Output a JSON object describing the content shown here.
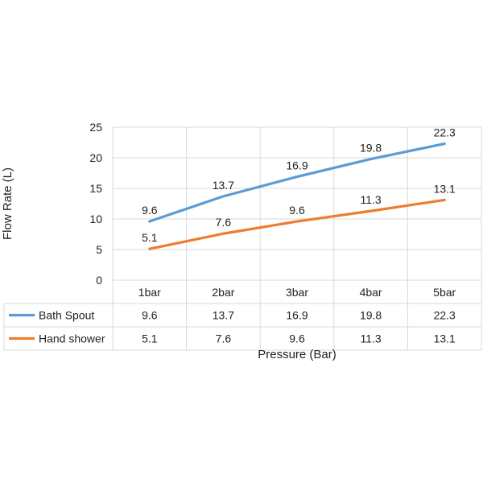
{
  "chart_data": {
    "type": "line",
    "title": "",
    "xlabel": "Pressure (Bar)",
    "ylabel": "Flow Rate (L)",
    "categories": [
      "1bar",
      "2bar",
      "3bar",
      "4bar",
      "5bar"
    ],
    "ylim": [
      0,
      25
    ],
    "yticks": [
      0,
      5,
      10,
      15,
      20,
      25
    ],
    "grid": true,
    "data_table": true,
    "series": [
      {
        "name": "Bath Spout",
        "color": "#5b9bd5",
        "values": [
          9.6,
          13.7,
          16.9,
          19.8,
          22.3
        ]
      },
      {
        "name": "Hand shower",
        "color": "#ed7d31",
        "values": [
          5.1,
          7.6,
          9.6,
          11.3,
          13.1
        ]
      }
    ]
  }
}
